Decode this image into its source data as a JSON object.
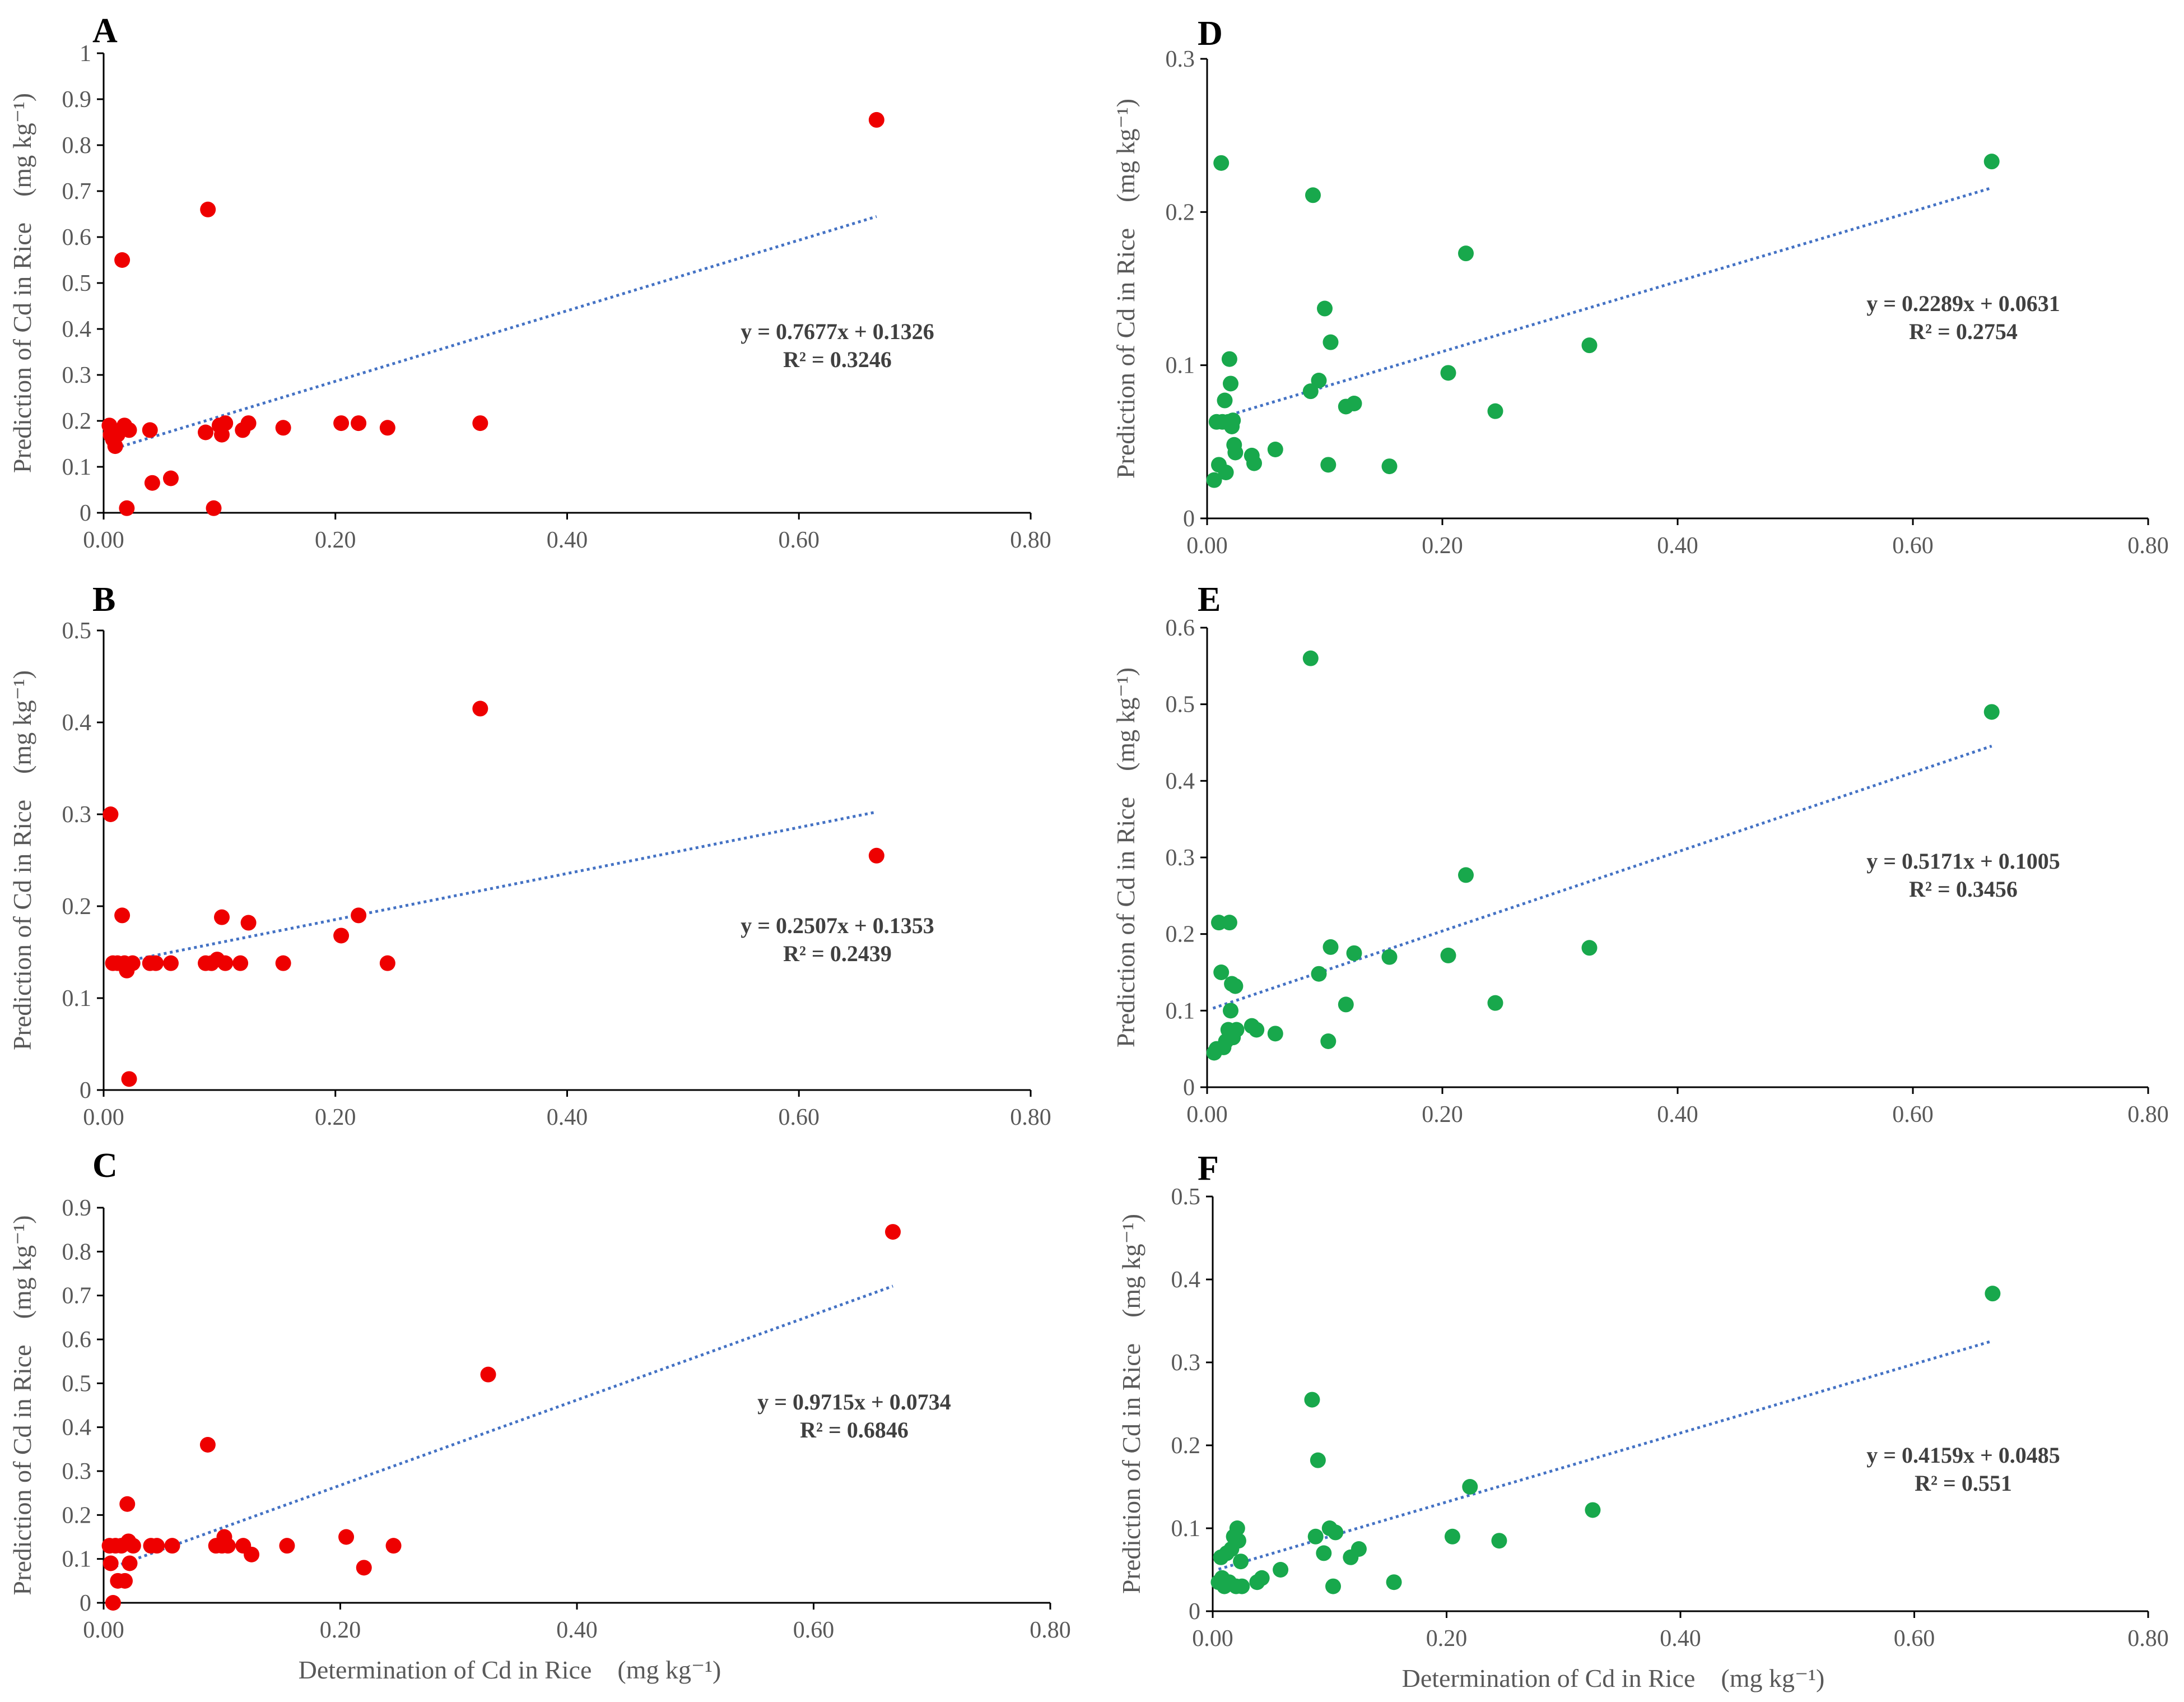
{
  "colors": {
    "red": "#ee0000",
    "green": "#18a84c",
    "trend": "#4472c4",
    "axis": "#000000",
    "text": "#595959"
  },
  "chart_data": [
    {
      "id": "A",
      "type": "scatter",
      "label": "A",
      "color": "#ee0000",
      "ylabel": "Prediction of Cd in Rice　(mg kg⁻¹)",
      "xlabel": "",
      "xlim": [
        0,
        0.8
      ],
      "ylim": [
        0,
        1
      ],
      "xticks": [
        "0.00",
        "0.20",
        "0.40",
        "0.60",
        "0.80"
      ],
      "yticks": [
        "0",
        "0.1",
        "0.2",
        "0.3",
        "0.4",
        "0.5",
        "0.6",
        "0.7",
        "0.8",
        "0.9",
        "1"
      ],
      "equation": "y = 0.7677x + 0.1326",
      "r2": "R² = 0.3246",
      "trend": {
        "slope": 0.7677,
        "intercept": 0.1326,
        "x_range": [
          0.005,
          0.667
        ]
      },
      "points": [
        [
          0.005,
          0.19
        ],
        [
          0.006,
          0.17
        ],
        [
          0.008,
          0.16
        ],
        [
          0.01,
          0.145
        ],
        [
          0.012,
          0.17
        ],
        [
          0.015,
          0.18
        ],
        [
          0.016,
          0.55
        ],
        [
          0.018,
          0.19
        ],
        [
          0.02,
          0.01
        ],
        [
          0.022,
          0.18
        ],
        [
          0.04,
          0.18
        ],
        [
          0.042,
          0.065
        ],
        [
          0.058,
          0.075
        ],
        [
          0.088,
          0.175
        ],
        [
          0.09,
          0.66
        ],
        [
          0.095,
          0.01
        ],
        [
          0.1,
          0.19
        ],
        [
          0.102,
          0.17
        ],
        [
          0.105,
          0.195
        ],
        [
          0.12,
          0.18
        ],
        [
          0.125,
          0.195
        ],
        [
          0.155,
          0.185
        ],
        [
          0.205,
          0.195
        ],
        [
          0.22,
          0.195
        ],
        [
          0.245,
          0.185
        ],
        [
          0.325,
          0.195
        ],
        [
          0.667,
          0.855
        ]
      ]
    },
    {
      "id": "B",
      "type": "scatter",
      "label": "B",
      "color": "#ee0000",
      "ylabel": "Prediction of Cd in Rice　(mg kg⁻¹)",
      "xlabel": "",
      "xlim": [
        0,
        0.8
      ],
      "ylim": [
        0,
        0.5
      ],
      "xticks": [
        "0.00",
        "0.20",
        "0.40",
        "0.60",
        "0.80"
      ],
      "yticks": [
        "0",
        "0.1",
        "0.2",
        "0.3",
        "0.4",
        "0.5"
      ],
      "equation": "y = 0.2507x + 0.1353",
      "r2": "R² = 0.2439",
      "trend": {
        "slope": 0.2507,
        "intercept": 0.1353,
        "x_range": [
          0.005,
          0.667
        ]
      },
      "points": [
        [
          0.006,
          0.3
        ],
        [
          0.008,
          0.138
        ],
        [
          0.012,
          0.138
        ],
        [
          0.016,
          0.19
        ],
        [
          0.018,
          0.138
        ],
        [
          0.02,
          0.13
        ],
        [
          0.022,
          0.012
        ],
        [
          0.025,
          0.138
        ],
        [
          0.04,
          0.138
        ],
        [
          0.045,
          0.138
        ],
        [
          0.058,
          0.138
        ],
        [
          0.088,
          0.138
        ],
        [
          0.093,
          0.138
        ],
        [
          0.098,
          0.142
        ],
        [
          0.102,
          0.188
        ],
        [
          0.105,
          0.138
        ],
        [
          0.118,
          0.138
        ],
        [
          0.125,
          0.182
        ],
        [
          0.155,
          0.138
        ],
        [
          0.205,
          0.168
        ],
        [
          0.22,
          0.19
        ],
        [
          0.245,
          0.138
        ],
        [
          0.325,
          0.415
        ],
        [
          0.667,
          0.255
        ]
      ]
    },
    {
      "id": "C",
      "type": "scatter",
      "label": "C",
      "color": "#ee0000",
      "ylabel": "Prediction of Cd in Rice　(mg kg⁻¹)",
      "xlabel": "Determination of Cd in Rice　(mg kg⁻¹)",
      "xlim": [
        0,
        0.8
      ],
      "ylim": [
        0,
        0.9
      ],
      "xticks": [
        "0.00",
        "0.20",
        "0.40",
        "0.60",
        "0.80"
      ],
      "yticks": [
        "0",
        "0.1",
        "0.2",
        "0.3",
        "0.4",
        "0.5",
        "0.6",
        "0.7",
        "0.8",
        "0.9"
      ],
      "equation": "y = 0.9715x + 0.0734",
      "r2": "R² = 0.6846",
      "trend": {
        "slope": 0.9715,
        "intercept": 0.0734,
        "x_range": [
          0.005,
          0.667
        ]
      },
      "points": [
        [
          0.005,
          0.13
        ],
        [
          0.006,
          0.09
        ],
        [
          0.008,
          0.0
        ],
        [
          0.01,
          0.13
        ],
        [
          0.012,
          0.05
        ],
        [
          0.015,
          0.13
        ],
        [
          0.018,
          0.05
        ],
        [
          0.02,
          0.225
        ],
        [
          0.021,
          0.14
        ],
        [
          0.022,
          0.09
        ],
        [
          0.025,
          0.13
        ],
        [
          0.04,
          0.13
        ],
        [
          0.045,
          0.13
        ],
        [
          0.058,
          0.13
        ],
        [
          0.088,
          0.36
        ],
        [
          0.095,
          0.13
        ],
        [
          0.1,
          0.13
        ],
        [
          0.102,
          0.15
        ],
        [
          0.105,
          0.13
        ],
        [
          0.118,
          0.13
        ],
        [
          0.125,
          0.11
        ],
        [
          0.155,
          0.13
        ],
        [
          0.205,
          0.15
        ],
        [
          0.22,
          0.08
        ],
        [
          0.245,
          0.13
        ],
        [
          0.325,
          0.52
        ],
        [
          0.667,
          0.845
        ]
      ]
    },
    {
      "id": "D",
      "type": "scatter",
      "label": "D",
      "color": "#18a84c",
      "ylabel": "Prediction of Cd in Rice　(mg kg⁻¹)",
      "xlabel": "",
      "xlim": [
        0,
        0.8
      ],
      "ylim": [
        0,
        0.3
      ],
      "xticks": [
        "0.00",
        "0.20",
        "0.40",
        "0.60",
        "0.80"
      ],
      "yticks": [
        "0",
        "0.1",
        "0.2",
        "0.3"
      ],
      "equation": "y = 0.2289x + 0.0631",
      "r2": "R² = 0.2754",
      "trend": {
        "slope": 0.2289,
        "intercept": 0.0631,
        "x_range": [
          0.005,
          0.667
        ]
      },
      "points": [
        [
          0.006,
          0.025
        ],
        [
          0.008,
          0.063
        ],
        [
          0.01,
          0.035
        ],
        [
          0.012,
          0.232
        ],
        [
          0.013,
          0.063
        ],
        [
          0.015,
          0.077
        ],
        [
          0.016,
          0.03
        ],
        [
          0.018,
          0.063
        ],
        [
          0.019,
          0.104
        ],
        [
          0.02,
          0.088
        ],
        [
          0.021,
          0.06
        ],
        [
          0.022,
          0.064
        ],
        [
          0.023,
          0.048
        ],
        [
          0.024,
          0.043
        ],
        [
          0.038,
          0.041
        ],
        [
          0.04,
          0.036
        ],
        [
          0.058,
          0.045
        ],
        [
          0.088,
          0.083
        ],
        [
          0.09,
          0.211
        ],
        [
          0.095,
          0.09
        ],
        [
          0.1,
          0.137
        ],
        [
          0.103,
          0.035
        ],
        [
          0.105,
          0.115
        ],
        [
          0.118,
          0.073
        ],
        [
          0.125,
          0.075
        ],
        [
          0.155,
          0.034
        ],
        [
          0.22,
          0.173
        ],
        [
          0.205,
          0.095
        ],
        [
          0.245,
          0.07
        ],
        [
          0.325,
          0.113
        ],
        [
          0.667,
          0.233
        ]
      ]
    },
    {
      "id": "E",
      "type": "scatter",
      "label": "E",
      "color": "#18a84c",
      "ylabel": "Prediction of Cd in Rice　(mg kg⁻¹)",
      "xlabel": "",
      "xlim": [
        0,
        0.8
      ],
      "ylim": [
        0,
        0.6
      ],
      "xticks": [
        "0.00",
        "0.20",
        "0.40",
        "0.60",
        "0.80"
      ],
      "yticks": [
        "0",
        "0.1",
        "0.2",
        "0.3",
        "0.4",
        "0.5",
        "0.6"
      ],
      "equation": "y = 0.5171x + 0.1005",
      "r2": "R² = 0.3456",
      "trend": {
        "slope": 0.5171,
        "intercept": 0.1005,
        "x_range": [
          0.005,
          0.667
        ]
      },
      "points": [
        [
          0.006,
          0.045
        ],
        [
          0.008,
          0.05
        ],
        [
          0.01,
          0.215
        ],
        [
          0.012,
          0.15
        ],
        [
          0.014,
          0.052
        ],
        [
          0.016,
          0.06
        ],
        [
          0.018,
          0.075
        ],
        [
          0.019,
          0.215
        ],
        [
          0.02,
          0.1
        ],
        [
          0.021,
          0.135
        ],
        [
          0.022,
          0.065
        ],
        [
          0.024,
          0.132
        ],
        [
          0.025,
          0.075
        ],
        [
          0.038,
          0.08
        ],
        [
          0.042,
          0.075
        ],
        [
          0.058,
          0.07
        ],
        [
          0.088,
          0.56
        ],
        [
          0.095,
          0.148
        ],
        [
          0.103,
          0.06
        ],
        [
          0.105,
          0.183
        ],
        [
          0.118,
          0.108
        ],
        [
          0.125,
          0.175
        ],
        [
          0.155,
          0.17
        ],
        [
          0.205,
          0.172
        ],
        [
          0.22,
          0.277
        ],
        [
          0.245,
          0.11
        ],
        [
          0.325,
          0.182
        ],
        [
          0.667,
          0.49
        ]
      ]
    },
    {
      "id": "F",
      "type": "scatter",
      "label": "F",
      "color": "#18a84c",
      "ylabel": "Prediction of Cd in Rice　(mg kg⁻¹)",
      "xlabel": "Determination of Cd in Rice　(mg kg⁻¹)",
      "xlim": [
        0,
        0.8
      ],
      "ylim": [
        0,
        0.5
      ],
      "xticks": [
        "0.00",
        "0.20",
        "0.40",
        "0.60",
        "0.80"
      ],
      "yticks": [
        "0",
        "0.1",
        "0.2",
        "0.3",
        "0.4",
        "0.5"
      ],
      "equation": "y = 0.4159x + 0.0485",
      "r2": "R² = 0.551",
      "trend": {
        "slope": 0.4159,
        "intercept": 0.0485,
        "x_range": [
          0.005,
          0.667
        ]
      },
      "points": [
        [
          0.005,
          0.035
        ],
        [
          0.007,
          0.065
        ],
        [
          0.008,
          0.04
        ],
        [
          0.01,
          0.03
        ],
        [
          0.012,
          0.07
        ],
        [
          0.014,
          0.035
        ],
        [
          0.016,
          0.075
        ],
        [
          0.018,
          0.09
        ],
        [
          0.02,
          0.03
        ],
        [
          0.021,
          0.1
        ],
        [
          0.022,
          0.085
        ],
        [
          0.024,
          0.06
        ],
        [
          0.025,
          0.03
        ],
        [
          0.038,
          0.035
        ],
        [
          0.042,
          0.04
        ],
        [
          0.058,
          0.05
        ],
        [
          0.085,
          0.255
        ],
        [
          0.088,
          0.09
        ],
        [
          0.09,
          0.182
        ],
        [
          0.095,
          0.07
        ],
        [
          0.1,
          0.1
        ],
        [
          0.103,
          0.03
        ],
        [
          0.105,
          0.095
        ],
        [
          0.118,
          0.065
        ],
        [
          0.125,
          0.075
        ],
        [
          0.155,
          0.035
        ],
        [
          0.205,
          0.09
        ],
        [
          0.22,
          0.15
        ],
        [
          0.245,
          0.085
        ],
        [
          0.325,
          0.122
        ],
        [
          0.667,
          0.383
        ]
      ]
    }
  ]
}
